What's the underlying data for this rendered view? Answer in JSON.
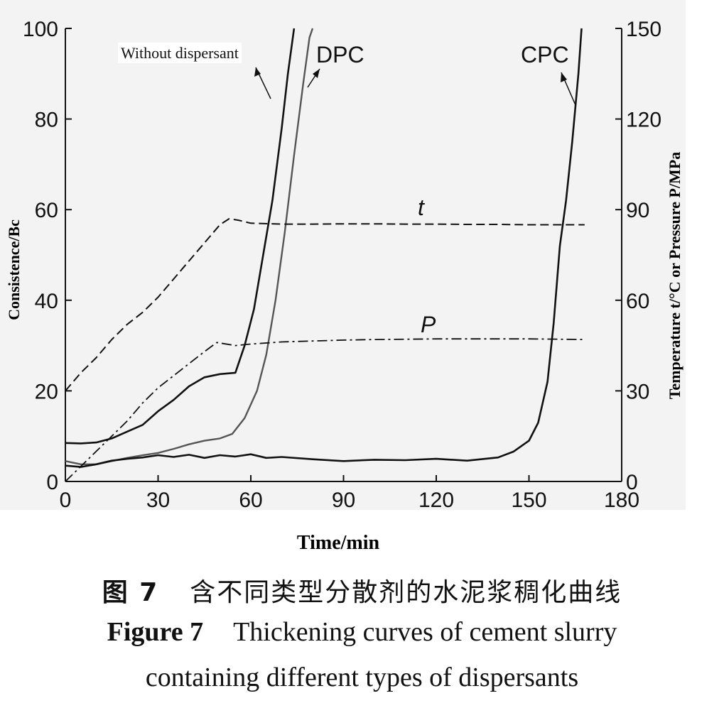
{
  "chart_data": {
    "type": "line",
    "title": "",
    "xlabel": "Time/min",
    "ylabel": "Consistence/Bc",
    "y2label": "Temperature t/°C or Pressure P/MPa",
    "xlim": [
      0,
      180
    ],
    "ylim": [
      0,
      100
    ],
    "y2lim": [
      0,
      150
    ],
    "xticks": [
      "0",
      "30",
      "60",
      "90",
      "120",
      "150",
      "180"
    ],
    "yticks": [
      "0",
      "20",
      "40",
      "60",
      "80",
      "100"
    ],
    "y2ticks": [
      "0",
      "30",
      "60",
      "90",
      "120",
      "150"
    ],
    "series": [
      {
        "name": "Without dispersant",
        "axis": "left",
        "style": "solid",
        "x": [
          0,
          5,
          10,
          15,
          20,
          25,
          30,
          35,
          40,
          45,
          50,
          55,
          58,
          61,
          64,
          67,
          70,
          72,
          74
        ],
        "y": [
          8.5,
          8.4,
          8.6,
          9.5,
          11,
          12.5,
          15.5,
          18,
          21,
          23,
          23.7,
          24,
          30,
          38,
          50,
          62,
          78,
          90,
          100
        ]
      },
      {
        "name": "DPC",
        "axis": "left",
        "style": "solid",
        "x": [
          0,
          5,
          10,
          15,
          20,
          25,
          30,
          35,
          40,
          45,
          50,
          54,
          58,
          62,
          65,
          68,
          71,
          74,
          77,
          79,
          80
        ],
        "y": [
          4.5,
          3.8,
          3.8,
          4.5,
          5.2,
          5.8,
          6.3,
          7.2,
          8.2,
          9.0,
          9.5,
          10.5,
          14,
          20,
          28,
          40,
          55,
          72,
          88,
          98,
          100
        ]
      },
      {
        "name": "CPC",
        "axis": "left",
        "style": "solid",
        "x": [
          0,
          5,
          10,
          15,
          20,
          25,
          30,
          35,
          40,
          45,
          50,
          55,
          60,
          65,
          70,
          80,
          90,
          100,
          110,
          120,
          130,
          140,
          145,
          150,
          153,
          156,
          158,
          160,
          162,
          164,
          166,
          167
        ],
        "y": [
          3.5,
          3.2,
          3.8,
          4.6,
          5.0,
          5.3,
          5.8,
          5.4,
          5.9,
          5.2,
          5.8,
          5.5,
          6.0,
          5.2,
          5.4,
          4.9,
          4.5,
          4.8,
          4.7,
          5.0,
          4.6,
          5.3,
          6.6,
          9,
          13,
          22,
          35,
          52,
          62,
          75,
          90,
          100
        ]
      },
      {
        "name": "t",
        "axis": "right",
        "style": "dashed",
        "x": [
          0,
          5,
          10,
          15,
          20,
          25,
          30,
          35,
          40,
          45,
          50,
          53,
          56,
          60,
          70,
          80,
          90,
          100,
          110,
          120,
          130,
          140,
          150,
          160,
          168
        ],
        "y": [
          30,
          36,
          41,
          47,
          52,
          56,
          61,
          67,
          73,
          79,
          85,
          87,
          86.5,
          85.5,
          85.2,
          85.2,
          85.3,
          85.3,
          85.2,
          85.2,
          85.1,
          85.1,
          85.0,
          85.0,
          85.0
        ]
      },
      {
        "name": "P",
        "axis": "right",
        "style": "dashdot",
        "x": [
          0,
          5,
          10,
          15,
          20,
          25,
          30,
          35,
          40,
          45,
          49,
          55,
          60,
          70,
          80,
          90,
          100,
          110,
          120,
          130,
          140,
          150,
          160,
          168
        ],
        "y": [
          0,
          5,
          10,
          15,
          20,
          26,
          31,
          35,
          39,
          43,
          46,
          45,
          45.5,
          46.2,
          46.5,
          46.8,
          47.0,
          47.1,
          47.2,
          47.2,
          47.2,
          47.2,
          47.1,
          47.0
        ]
      }
    ],
    "annotations": [
      {
        "text": "Without dispersant",
        "target_series": "Without dispersant"
      },
      {
        "text": "DPC",
        "target_series": "DPC"
      },
      {
        "text": "CPC",
        "target_series": "CPC"
      },
      {
        "text": "t",
        "target_series": "t"
      },
      {
        "text": "P",
        "target_series": "P"
      }
    ]
  },
  "caption": {
    "cn_label": "图 7",
    "cn_text": "含不同类型分散剂的水泥浆稠化曲线",
    "en_label": "Figure 7",
    "en_line1": "Thickening curves of cement slurry",
    "en_line2": "containing different types of dispersants"
  }
}
